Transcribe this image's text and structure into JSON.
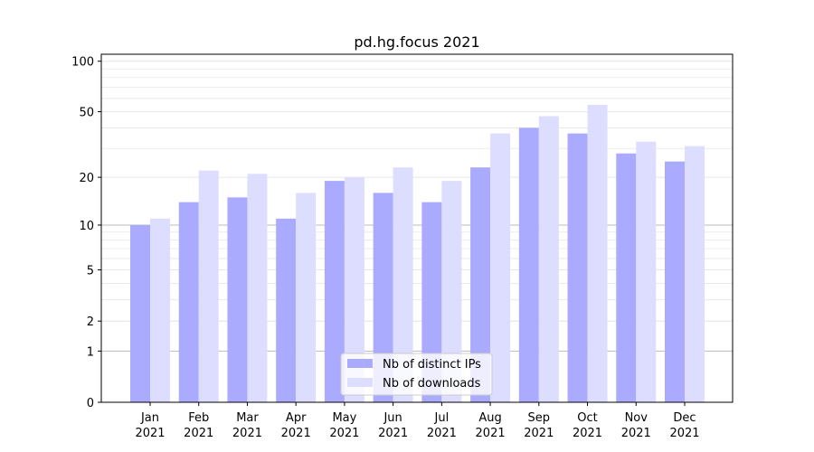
{
  "chart_data": {
    "type": "bar",
    "title": "pd.hg.focus 2021",
    "xlabel": "",
    "ylabel": "",
    "yscale": "log1p",
    "ylim": [
      0,
      110
    ],
    "yticks": [
      0,
      1,
      2,
      5,
      10,
      20,
      50,
      100
    ],
    "categories": [
      {
        "month": "Jan",
        "year": "2021"
      },
      {
        "month": "Feb",
        "year": "2021"
      },
      {
        "month": "Mar",
        "year": "2021"
      },
      {
        "month": "Apr",
        "year": "2021"
      },
      {
        "month": "May",
        "year": "2021"
      },
      {
        "month": "Jun",
        "year": "2021"
      },
      {
        "month": "Jul",
        "year": "2021"
      },
      {
        "month": "Aug",
        "year": "2021"
      },
      {
        "month": "Sep",
        "year": "2021"
      },
      {
        "month": "Oct",
        "year": "2021"
      },
      {
        "month": "Nov",
        "year": "2021"
      },
      {
        "month": "Dec",
        "year": "2021"
      }
    ],
    "series": [
      {
        "name": "Nb of distinct IPs",
        "color": "#aaaaff",
        "values": [
          10,
          14,
          15,
          11,
          19,
          16,
          14,
          23,
          40,
          37,
          28,
          25
        ]
      },
      {
        "name": "Nb of downloads",
        "color": "#ddddff",
        "values": [
          11,
          22,
          21,
          16,
          20,
          23,
          19,
          37,
          47,
          55,
          33,
          31
        ]
      }
    ],
    "grid": true,
    "legend": "bottom-center"
  }
}
